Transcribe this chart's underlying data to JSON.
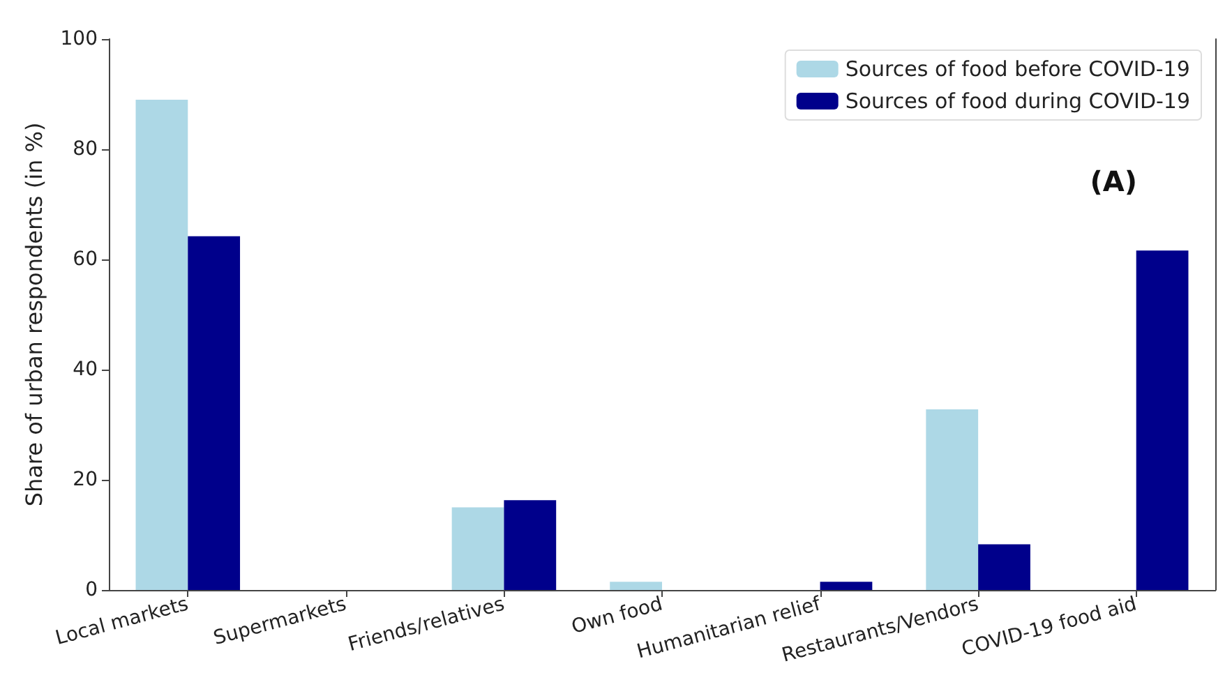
{
  "chart_data": {
    "type": "bar",
    "ylabel": "Share of urban respondents (in %)",
    "categories": [
      "Local markets",
      "Supermarkets",
      "Friends/relatives",
      "Own food",
      "Humanitarian relief",
      "Restaurants/Vendors",
      "COVID-19 food aid"
    ],
    "series": [
      {
        "name": "Sources of food before COVID-19",
        "color": "#add8e6",
        "values": [
          89,
          0,
          15,
          1.5,
          0,
          32.8,
          0
        ]
      },
      {
        "name": "Sources of food during COVID-19",
        "color": "#00008b",
        "values": [
          64.2,
          0,
          16.3,
          0,
          1.5,
          8.3,
          61.6
        ]
      }
    ],
    "ylim": [
      0,
      100
    ],
    "yticks": [
      0,
      20,
      40,
      60,
      80,
      100
    ],
    "grid": false,
    "legend": "top right",
    "annotations": [
      "(A)"
    ]
  }
}
